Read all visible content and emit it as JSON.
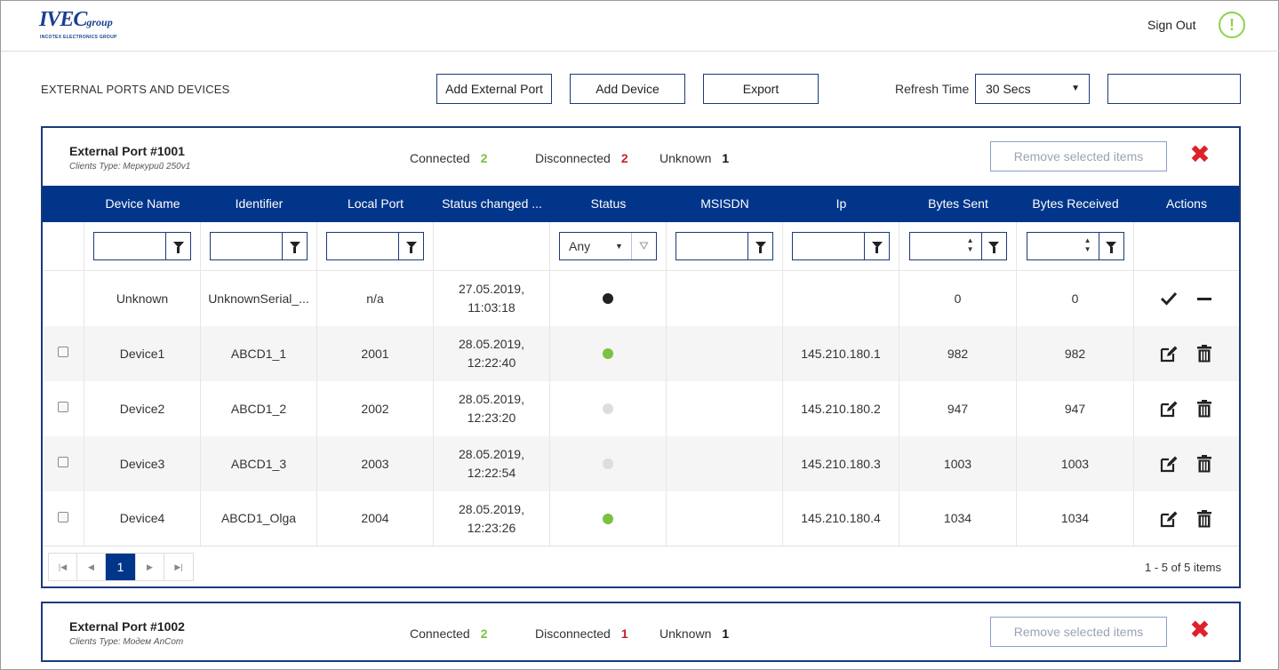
{
  "header": {
    "logo_word": "IVEC",
    "logo_small": "group",
    "logo_tag": "INCOTEX ELECTRONICS GROUP",
    "sign_out": "Sign Out",
    "alert_glyph": "!"
  },
  "toolbar": {
    "title": "EXTERNAL PORTS AND DEVICES",
    "add_port": "Add External Port",
    "add_device": "Add Device",
    "export": "Export",
    "refresh_label": "Refresh Time",
    "refresh_value": "30 Secs"
  },
  "ports": [
    {
      "title": "External Port #1001",
      "clients_type": "Clients Type: Меркурий 250v1",
      "connected_label": "Connected",
      "connected": "2",
      "disconnected_label": "Disconnected",
      "disconnected": "2",
      "unknown_label": "Unknown",
      "unknown": "1",
      "remove_label": "Remove selected items",
      "columns": [
        "Device Name",
        "Identifier",
        "Local Port",
        "Status changed ...",
        "Status",
        "MSISDN",
        "Ip",
        "Bytes Sent",
        "Bytes Received",
        "Actions"
      ],
      "status_filter": "Any",
      "rows": [
        {
          "name": "Unknown",
          "identifier": "UnknownSerial_...",
          "local_port": "n/a",
          "date": "27.05.2019,",
          "time": "11:03:18",
          "status": "unknown",
          "msisdn": "",
          "ip": "",
          "sent": "0",
          "received": "0"
        },
        {
          "name": "Device1",
          "identifier": "ABCD1_1",
          "local_port": "2001",
          "date": "28.05.2019,",
          "time": "12:22:40",
          "status": "connected",
          "msisdn": "",
          "ip": "145.210.180.1",
          "sent": "982",
          "received": "982"
        },
        {
          "name": "Device2",
          "identifier": "ABCD1_2",
          "local_port": "2002",
          "date": "28.05.2019,",
          "time": "12:23:20",
          "status": "disconnected",
          "msisdn": "",
          "ip": "145.210.180.2",
          "sent": "947",
          "received": "947"
        },
        {
          "name": "Device3",
          "identifier": "ABCD1_3",
          "local_port": "2003",
          "date": "28.05.2019,",
          "time": "12:22:54",
          "status": "disconnected",
          "msisdn": "",
          "ip": "145.210.180.3",
          "sent": "1003",
          "received": "1003"
        },
        {
          "name": "Device4",
          "identifier": "ABCD1_Olga",
          "local_port": "2004",
          "date": "28.05.2019,",
          "time": "12:23:26",
          "status": "connected",
          "msisdn": "",
          "ip": "145.210.180.4",
          "sent": "1034",
          "received": "1034"
        }
      ],
      "pager": {
        "current_page": "1",
        "info": "1 - 5 of 5 items"
      }
    },
    {
      "title": "External Port #1002",
      "clients_type": "Clients Type: Модем AnCom",
      "connected_label": "Connected",
      "connected": "2",
      "disconnected_label": "Disconnected",
      "disconnected": "1",
      "unknown_label": "Unknown",
      "unknown": "1",
      "remove_label": "Remove selected items"
    }
  ],
  "colors": {
    "brand": "#00358a",
    "connected": "#7bc142",
    "disconnected_dot": "#dddddd",
    "unknown_dot": "#222222",
    "error": "#e0202a"
  }
}
